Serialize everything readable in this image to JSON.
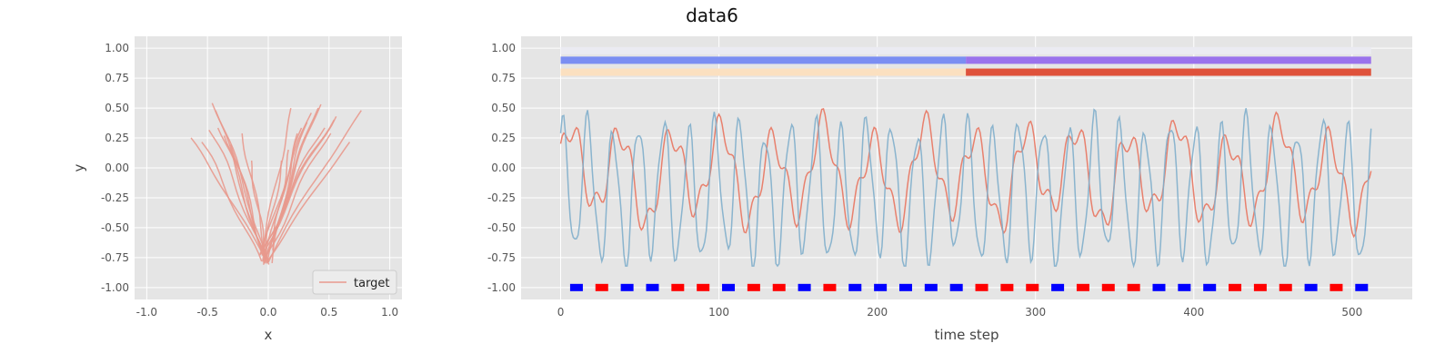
{
  "title": "data6",
  "colors": {
    "target": "#e8998d",
    "signal_red": "#e8806d",
    "signal_blue": "#7faecb",
    "bar_lavender": "#ebebf2",
    "bar_blue": "#7b8ef2",
    "bar_purple": "#9a72ec",
    "bar_peach": "#fbe0c0",
    "bar_red": "#df523b",
    "marker_red": "#ff0000",
    "marker_blue": "#0000ff"
  },
  "chart_data": [
    {
      "type": "line",
      "xlabel": "x",
      "ylabel": "y",
      "xlim": [
        -1.1,
        1.1
      ],
      "ylim": [
        -1.1,
        1.1
      ],
      "xticks": [
        "-1.0",
        "-0.5",
        "0.0",
        "0.5",
        "1.0"
      ],
      "yticks": [
        "-1.00",
        "-0.75",
        "-0.50",
        "-0.25",
        "0.00",
        "0.25",
        "0.50",
        "0.75",
        "1.00"
      ],
      "legend": {
        "position": "bottom-right",
        "entries": [
          "target"
        ]
      },
      "series": [
        {
          "name": "target",
          "trajectory_endpoints": [
            [
              -0.65,
              0.26
            ],
            [
              -0.55,
              0.22
            ],
            [
              -0.48,
              0.33
            ],
            [
              -0.45,
              0.56
            ],
            [
              -0.42,
              0.5
            ],
            [
              -0.4,
              0.35
            ],
            [
              -0.35,
              0.28
            ],
            [
              -0.3,
              0.2
            ],
            [
              -0.22,
              0.3
            ],
            [
              -0.15,
              0.05
            ],
            [
              0.12,
              0.05
            ],
            [
              0.18,
              0.15
            ],
            [
              0.2,
              0.52
            ],
            [
              0.25,
              0.3
            ],
            [
              0.28,
              0.35
            ],
            [
              0.32,
              0.4
            ],
            [
              0.35,
              0.48
            ],
            [
              0.4,
              0.52
            ],
            [
              0.42,
              0.55
            ],
            [
              0.45,
              0.35
            ],
            [
              0.5,
              0.3
            ],
            [
              0.53,
              0.42
            ],
            [
              0.55,
              0.45
            ],
            [
              0.68,
              0.22
            ],
            [
              0.78,
              0.5
            ]
          ],
          "origin_min": [
            -0.02,
            -0.82
          ]
        }
      ]
    },
    {
      "type": "line",
      "title": "data6",
      "xlabel": "time step",
      "ylabel": "",
      "xlim": [
        -25,
        538
      ],
      "ylim": [
        -1.1,
        1.1
      ],
      "xticks": [
        "0",
        "100",
        "200",
        "300",
        "400",
        "500"
      ],
      "yticks": [
        "-1.00",
        "-0.75",
        "-0.50",
        "-0.25",
        "0.00",
        "0.25",
        "0.50",
        "0.75",
        "1.00"
      ],
      "length": 512,
      "series": [
        {
          "color": "signal_red",
          "period": 32,
          "mean": -0.05,
          "amplitude": 0.35,
          "note_range": [
            -0.65,
            0.78
          ]
        },
        {
          "color": "signal_blue",
          "period": 16,
          "mean": -0.2,
          "amplitude": 0.55,
          "note_range": [
            -0.82,
            0.52
          ]
        }
      ],
      "bars": [
        {
          "y": 0.98,
          "segments": [
            {
              "start": 0,
              "end": 512,
              "color": "bar_lavender"
            }
          ]
        },
        {
          "y": 0.9,
          "segments": [
            {
              "start": 0,
              "end": 256,
              "color": "bar_blue"
            },
            {
              "start": 256,
              "end": 512,
              "color": "bar_purple"
            }
          ]
        },
        {
          "y": 0.8,
          "segments": [
            {
              "start": 0,
              "end": 256,
              "color": "bar_peach"
            },
            {
              "start": 256,
              "end": 512,
              "color": "bar_red"
            }
          ]
        }
      ],
      "markers": {
        "y": -1.0,
        "x": [
          10,
          26,
          42,
          58,
          74,
          90,
          106,
          122,
          138,
          154,
          170,
          186,
          202,
          218,
          234,
          250,
          266,
          282,
          298,
          314,
          330,
          346,
          362,
          378,
          394,
          410,
          426,
          442,
          458,
          474,
          490,
          506
        ],
        "colors": [
          "marker_blue",
          "marker_red",
          "marker_blue",
          "marker_blue",
          "marker_red",
          "marker_red",
          "marker_blue",
          "marker_red",
          "marker_red",
          "marker_blue",
          "marker_red",
          "marker_blue",
          "marker_blue",
          "marker_blue",
          "marker_blue",
          "marker_blue",
          "marker_red",
          "marker_red",
          "marker_red",
          "marker_blue",
          "marker_red",
          "marker_red",
          "marker_red",
          "marker_blue",
          "marker_blue",
          "marker_blue",
          "marker_red",
          "marker_red",
          "marker_red",
          "marker_blue",
          "marker_red",
          "marker_blue"
        ]
      }
    }
  ]
}
